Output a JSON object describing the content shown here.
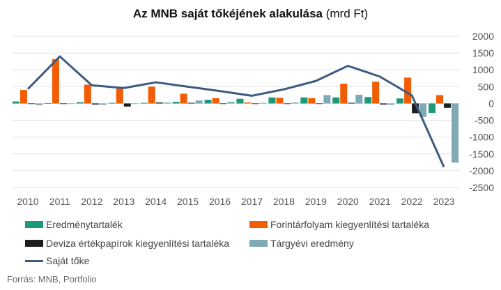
{
  "title": {
    "bold": "Az MNB saját tőkéjének alakulása",
    "normal": " (mrd Ft)"
  },
  "source": "Forrás: MNB, Portfolio",
  "chart_data": {
    "type": "bar",
    "categories": [
      "2010",
      "2011",
      "2012",
      "2013",
      "2014",
      "2015",
      "2016",
      "2017",
      "2018",
      "2019",
      "2020",
      "2021",
      "2022",
      "2023"
    ],
    "ylim": [
      -2500,
      2000
    ],
    "yticks": [
      2000,
      1500,
      1000,
      500,
      0,
      -500,
      -1000,
      -1500,
      -2000,
      -2500
    ],
    "grid": true,
    "legend_position": "bottom",
    "series": [
      {
        "name": "Eredménytartalék",
        "kind": "bar",
        "color": "#1a9a7a",
        "values": [
          60,
          10,
          40,
          20,
          20,
          50,
          110,
          140,
          180,
          180,
          180,
          190,
          150,
          -280
        ]
      },
      {
        "name": "Forintárfolyam kiegyenlítési tartaléka",
        "kind": "bar",
        "color": "#f25c05",
        "values": [
          400,
          1320,
          560,
          490,
          500,
          290,
          160,
          30,
          170,
          160,
          590,
          650,
          770,
          250
        ]
      },
      {
        "name": "Deviza értékpapírok kiegyenlítési tartaléka",
        "kind": "bar",
        "color": "#1e1e1e",
        "values": [
          0,
          0,
          -30,
          -90,
          30,
          20,
          0,
          0,
          0,
          0,
          20,
          -30,
          -290,
          -130
        ]
      },
      {
        "name": "Tárgyévi eredmény",
        "kind": "bar",
        "color": "#7fa9b5",
        "values": [
          -50,
          0,
          -40,
          0,
          30,
          90,
          50,
          20,
          30,
          250,
          260,
          -40,
          -400,
          -1760
        ]
      },
      {
        "name": "Saját tőke",
        "kind": "line",
        "color": "#3d5a80",
        "values": [
          430,
          1400,
          540,
          460,
          630,
          500,
          370,
          230,
          420,
          670,
          1120,
          800,
          240,
          -1890
        ]
      }
    ]
  }
}
